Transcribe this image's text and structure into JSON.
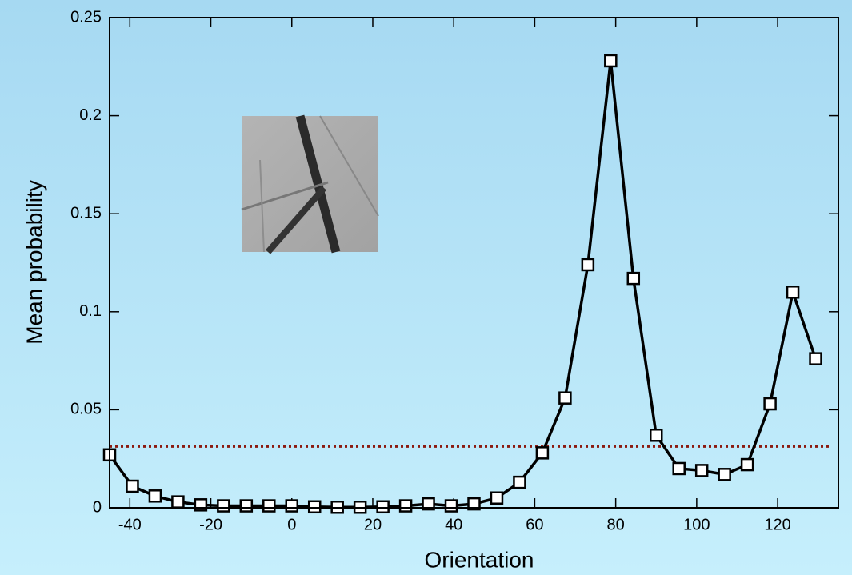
{
  "chart_data": {
    "type": "line",
    "x_label": "Orientation",
    "y_label": "Mean probability",
    "x": [
      -45,
      -39.375,
      -33.75,
      -28.125,
      -22.5,
      -16.875,
      -11.25,
      -5.625,
      0,
      5.625,
      11.25,
      16.875,
      22.5,
      28.125,
      33.75,
      39.375,
      45,
      50.625,
      56.25,
      61.875,
      67.5,
      73.125,
      78.75,
      84.375,
      90,
      95.625,
      101.25,
      106.875,
      112.5,
      118.125,
      123.75,
      129.375
    ],
    "series": [
      {
        "color": "#000000",
        "values": [
          0.027,
          0.011,
          0.006,
          0.003,
          0.0015,
          0.001,
          0.001,
          0.001,
          0.001,
          0.0005,
          0.0003,
          0.0003,
          0.0005,
          0.001,
          0.002,
          0.001,
          0.002,
          0.005,
          0.013,
          0.028,
          0.056,
          0.124,
          0.228,
          0.117,
          0.037,
          0.02,
          0.019,
          0.017,
          0.022,
          0.053,
          0.11,
          0.076
        ]
      }
    ],
    "reference_line": {
      "value": 0.03125,
      "color": "#8b1a10"
    },
    "xlim": [
      -45,
      135
    ],
    "ylim": [
      0,
      0.25
    ],
    "xticks": [
      -40,
      -20,
      0,
      20,
      40,
      60,
      80,
      100,
      120
    ],
    "yticks": [
      0,
      0.05,
      0.1,
      0.15,
      0.2,
      0.25
    ]
  }
}
